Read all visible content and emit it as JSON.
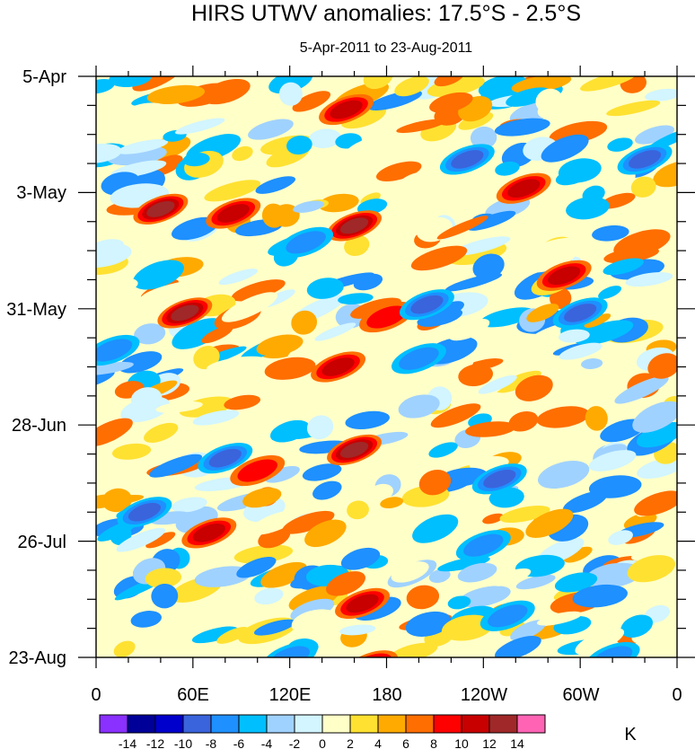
{
  "chart_data": {
    "type": "heatmap",
    "title": "HIRS UTWV anomalies: 17.5°S - 2.5°S",
    "subtitle": "5-Apr-2011 to 23-Aug-2011",
    "x_ticks": [
      "0",
      "60E",
      "120E",
      "180",
      "120W",
      "60W",
      "0"
    ],
    "x_range": [
      0,
      360
    ],
    "y_ticks": [
      "5-Apr",
      "3-May",
      "31-May",
      "28-Jun",
      "26-Jul",
      "23-Aug"
    ],
    "y_range_days": [
      0,
      140
    ],
    "colorbar": {
      "levels": [
        "-14",
        "-12",
        "-10",
        "-8",
        "-6",
        "-4",
        "-2",
        "0",
        "2",
        "4",
        "6",
        "8",
        "10",
        "12",
        "14"
      ],
      "colors": [
        "#8a30ff",
        "#000099",
        "#0000cc",
        "#3a64dc",
        "#1e90ff",
        "#00bfff",
        "#a0d2ff",
        "#d2f5ff",
        "#ffffc8",
        "#ffe132",
        "#ffaa00",
        "#ff6e00",
        "#ff0000",
        "#c80000",
        "#a02828",
        "#ff64b4"
      ],
      "units": "K"
    },
    "features": [
      {
        "lon": 40,
        "day": 32,
        "value": 12
      },
      {
        "lon": 55,
        "day": 57,
        "value": 12
      },
      {
        "lon": 70,
        "day": 110,
        "value": 10
      },
      {
        "lon": 85,
        "day": 33,
        "value": 10
      },
      {
        "lon": 155,
        "day": 8,
        "value": 10
      },
      {
        "lon": 160,
        "day": 36,
        "value": 12
      },
      {
        "lon": 150,
        "day": 70,
        "value": 10
      },
      {
        "lon": 160,
        "day": 90,
        "value": 12
      },
      {
        "lon": 165,
        "day": 127,
        "value": 10
      },
      {
        "lon": 170,
        "day": 142,
        "value": 10
      },
      {
        "lon": 180,
        "day": 58,
        "value": 8
      },
      {
        "lon": 290,
        "day": 48,
        "value": 10
      },
      {
        "lon": 265,
        "day": 27,
        "value": 10
      },
      {
        "lon": 100,
        "day": 95,
        "value": 8
      },
      {
        "lon": 30,
        "day": 105,
        "value": -10
      },
      {
        "lon": 120,
        "day": 140,
        "value": -8
      },
      {
        "lon": 230,
        "day": 20,
        "value": -10
      },
      {
        "lon": 340,
        "day": 20,
        "value": -10
      },
      {
        "lon": 205,
        "day": 55,
        "value": -10
      },
      {
        "lon": 300,
        "day": 57,
        "value": -10
      },
      {
        "lon": 80,
        "day": 92,
        "value": -10
      },
      {
        "lon": 250,
        "day": 97,
        "value": -10
      },
      {
        "lon": 200,
        "day": 68,
        "value": -8
      },
      {
        "lon": 10,
        "day": 66,
        "value": -8
      },
      {
        "lon": 255,
        "day": 130,
        "value": -8
      },
      {
        "lon": 320,
        "day": 140,
        "value": -8
      },
      {
        "lon": 130,
        "day": 40,
        "value": -8
      },
      {
        "lon": 240,
        "day": 113,
        "value": -8
      }
    ]
  }
}
